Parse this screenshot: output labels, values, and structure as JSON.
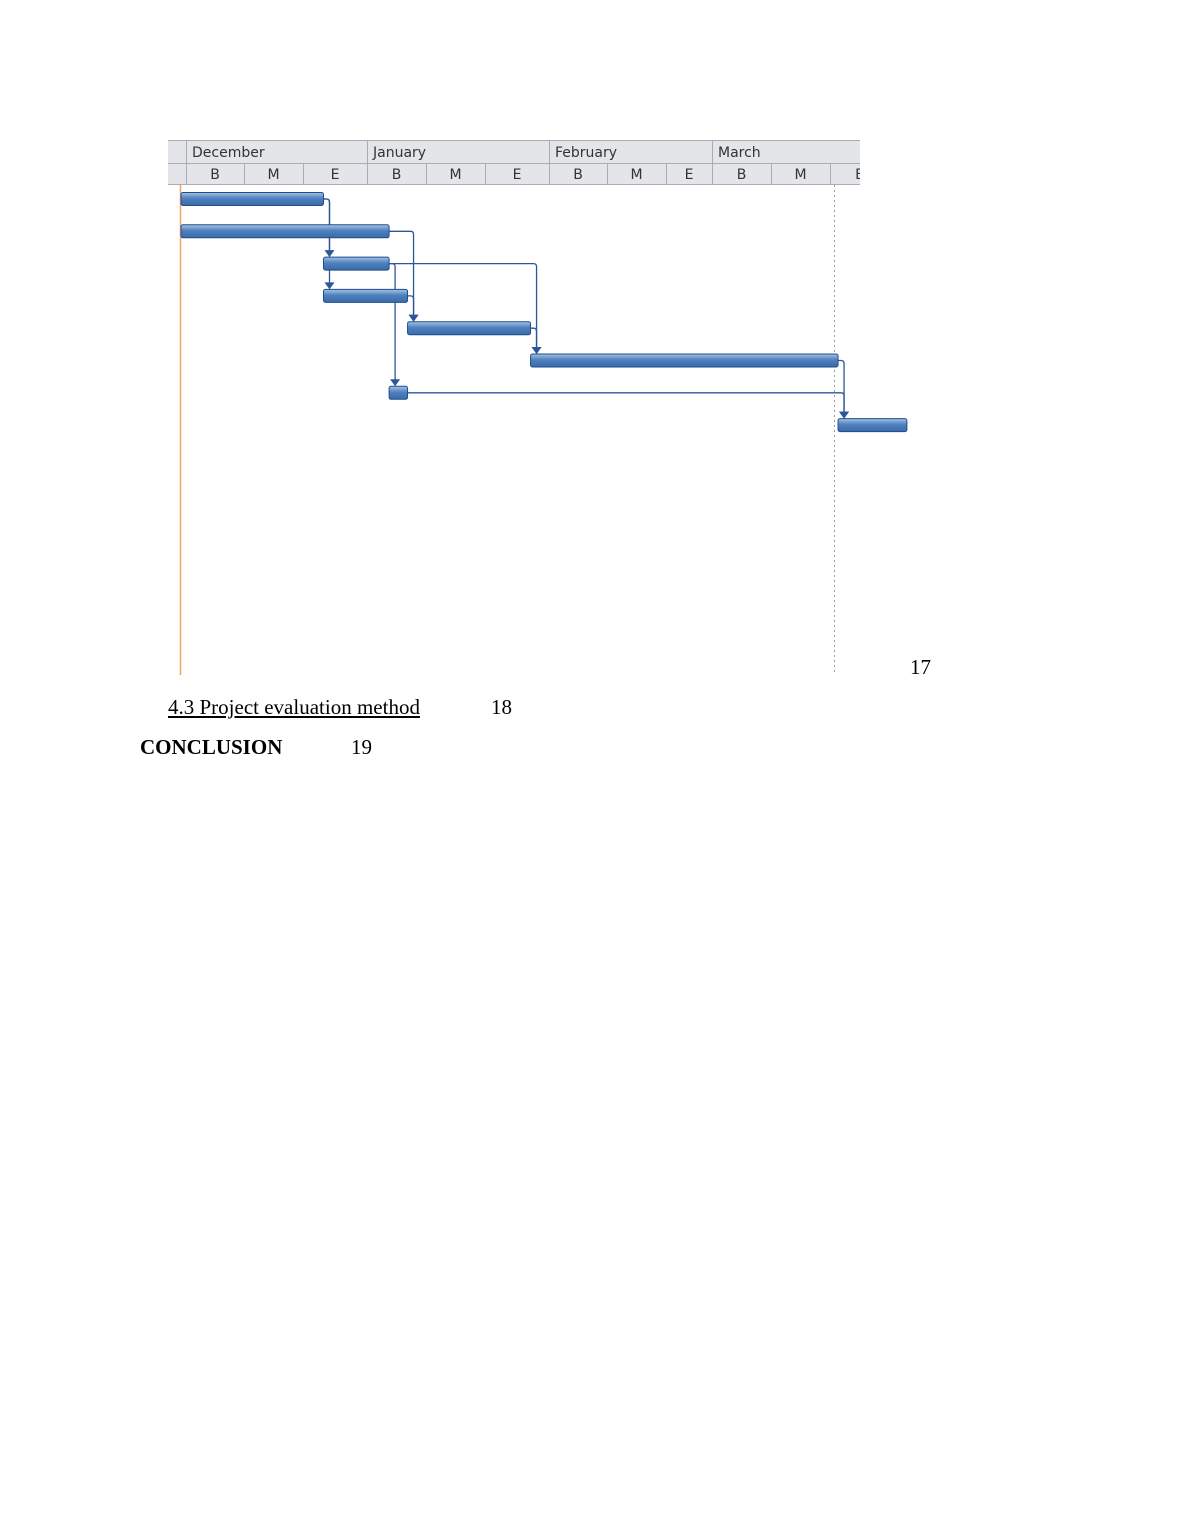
{
  "gantt": {
    "months": [
      "December",
      "January",
      "February",
      "March"
    ],
    "periods": [
      "B",
      "M",
      "E",
      "B",
      "M",
      "E",
      "B",
      "M",
      "E",
      "B",
      "M",
      "E"
    ],
    "colors": {
      "bar": "#4f81bd",
      "bar_dark": "#1f4e8c",
      "link": "#2b5797",
      "today_line": "#f4a460",
      "header_bg": "#e3e5e8",
      "header_border": "#a9acb2"
    },
    "tasks": [
      {
        "id": 1,
        "start": 0.0,
        "end": 1.25
      },
      {
        "id": 2,
        "start": 0.0,
        "end": 2.1
      },
      {
        "id": 3,
        "start": 1.25,
        "end": 2.1
      },
      {
        "id": 4,
        "start": 1.25,
        "end": 2.55
      },
      {
        "id": 5,
        "start": 2.55,
        "end": 3.85
      },
      {
        "id": 6,
        "start": 3.85,
        "end": 6.05
      },
      {
        "id": 7,
        "start": 2.1,
        "end": 2.55
      },
      {
        "id": 8,
        "start": 6.05,
        "end": 6.9
      }
    ],
    "links": [
      {
        "from": 1,
        "to": 3
      },
      {
        "from": 1,
        "to": 4
      },
      {
        "from": 2,
        "to": 5
      },
      {
        "from": 3,
        "to": 6
      },
      {
        "from": 3,
        "to": 7
      },
      {
        "from": 4,
        "to": 5
      },
      {
        "from": 5,
        "to": 6
      },
      {
        "from": 6,
        "to": 8
      },
      {
        "from": 7,
        "to": 8
      }
    ]
  },
  "toc": {
    "prev_page": "17",
    "entries": [
      {
        "title": "4.3 Project evaluation method",
        "page": "18"
      },
      {
        "title": "CONCLUSION",
        "page": "19"
      }
    ]
  }
}
